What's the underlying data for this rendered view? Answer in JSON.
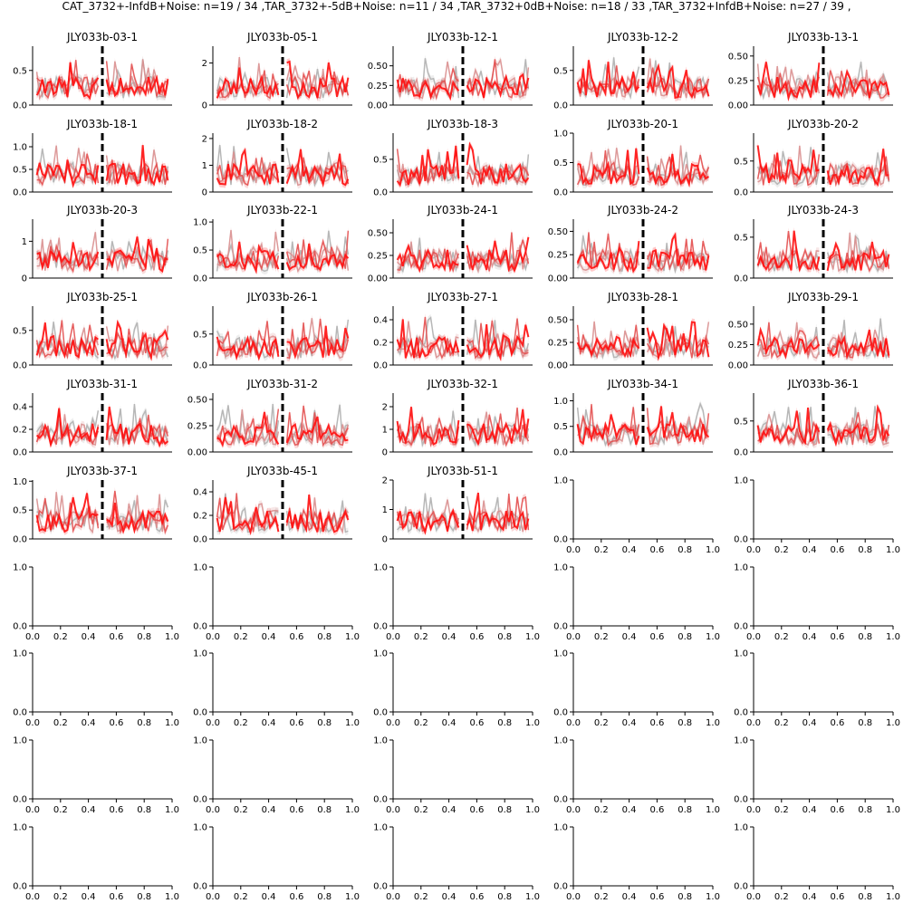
{
  "suptitle": "CAT_3732+-InfdB+Noise: n=19 / 34 ,TAR_3732+-5dB+Noise: n=11 / 34 ,TAR_3732+0dB+Noise: n=18 / 33 ,TAR_3732+InfdB+Noise: n=27 / 39 ,",
  "chart_data": {
    "type": "line",
    "layout": {
      "rows": 10,
      "cols": 5
    },
    "legend": "none",
    "grid": false,
    "series_names": [
      "CAT_3732+-InfdB+Noise",
      "TAR_3732+-5dB+Noise",
      "TAR_3732+0dB+Noise",
      "TAR_3732+InfdB+Noise"
    ],
    "series_colors": [
      "#b0b0b0",
      "#d99090",
      "#e35050",
      "#ff1010"
    ],
    "divider_x": 0.5,
    "panels": [
      {
        "title": "JLY033b-03-1",
        "ylim": [
          0,
          0.85
        ],
        "yticks": [
          "0.0",
          "0.5"
        ],
        "ytick_values": [
          0,
          0.5
        ]
      },
      {
        "title": "JLY033b-05-1",
        "ylim": [
          0,
          2.8
        ],
        "yticks": [
          "0",
          "2"
        ],
        "ytick_values": [
          0,
          2
        ]
      },
      {
        "title": "JLY033b-12-1",
        "ylim": [
          0,
          0.75
        ],
        "yticks": [
          "0.00",
          "0.25",
          "0.50"
        ],
        "ytick_values": [
          0,
          0.25,
          0.5
        ]
      },
      {
        "title": "JLY033b-12-2",
        "ylim": [
          0,
          0.85
        ],
        "yticks": [
          "0.0",
          "0.5"
        ],
        "ytick_values": [
          0,
          0.5
        ]
      },
      {
        "title": "JLY033b-13-1",
        "ylim": [
          0,
          0.6
        ],
        "yticks": [
          "0.00",
          "0.25",
          "0.50"
        ],
        "ytick_values": [
          0,
          0.25,
          0.5
        ]
      },
      {
        "title": "JLY033b-18-1",
        "ylim": [
          0,
          1.3
        ],
        "yticks": [
          "0.0",
          "0.5",
          "1.0"
        ],
        "ytick_values": [
          0,
          0.5,
          1.0
        ]
      },
      {
        "title": "JLY033b-18-2",
        "ylim": [
          0,
          2.2
        ],
        "yticks": [
          "0",
          "1",
          "2"
        ],
        "ytick_values": [
          0,
          1,
          2
        ]
      },
      {
        "title": "JLY033b-18-3",
        "ylim": [
          0,
          0.9
        ],
        "yticks": [
          "0.0",
          "0.5"
        ],
        "ytick_values": [
          0,
          0.5
        ]
      },
      {
        "title": "JLY033b-20-1",
        "ylim": [
          0,
          1.0
        ],
        "yticks": [
          "0.0",
          "0.5",
          "1.0"
        ],
        "ytick_values": [
          0,
          0.5,
          1.0
        ]
      },
      {
        "title": "JLY033b-20-2",
        "ylim": [
          0,
          0.95
        ],
        "yticks": [
          "0.0",
          "0.5"
        ],
        "ytick_values": [
          0,
          0.5
        ]
      },
      {
        "title": "JLY033b-20-3",
        "ylim": [
          0,
          1.6
        ],
        "yticks": [
          "0",
          "1"
        ],
        "ytick_values": [
          0,
          1
        ]
      },
      {
        "title": "JLY033b-22-1",
        "ylim": [
          0,
          1.05
        ],
        "yticks": [
          "0.0",
          "0.5",
          "1.0"
        ],
        "ytick_values": [
          0,
          0.5,
          1.0
        ]
      },
      {
        "title": "JLY033b-24-1",
        "ylim": [
          0,
          0.65
        ],
        "yticks": [
          "0.00",
          "0.25",
          "0.50"
        ],
        "ytick_values": [
          0,
          0.25,
          0.5
        ]
      },
      {
        "title": "JLY033b-24-2",
        "ylim": [
          0,
          0.63
        ],
        "yticks": [
          "0.00",
          "0.25",
          "0.50"
        ],
        "ytick_values": [
          0,
          0.25,
          0.5
        ]
      },
      {
        "title": "JLY033b-24-3",
        "ylim": [
          0,
          0.72
        ],
        "yticks": [
          "0.0",
          "0.5"
        ],
        "ytick_values": [
          0,
          0.5
        ]
      },
      {
        "title": "JLY033b-25-1",
        "ylim": [
          0,
          0.85
        ],
        "yticks": [
          "0.0",
          "0.5"
        ],
        "ytick_values": [
          0,
          0.5
        ]
      },
      {
        "title": "JLY033b-26-1",
        "ylim": [
          0,
          0.95
        ],
        "yticks": [
          "0.0",
          "0.5"
        ],
        "ytick_values": [
          0,
          0.5
        ]
      },
      {
        "title": "JLY033b-27-1",
        "ylim": [
          0,
          0.52
        ],
        "yticks": [
          "0.0",
          "0.2",
          "0.4"
        ],
        "ytick_values": [
          0,
          0.2,
          0.4
        ]
      },
      {
        "title": "JLY033b-28-1",
        "ylim": [
          0,
          0.65
        ],
        "yticks": [
          "0.00",
          "0.25",
          "0.50"
        ],
        "ytick_values": [
          0,
          0.25,
          0.5
        ]
      },
      {
        "title": "JLY033b-29-1",
        "ylim": [
          0,
          0.72
        ],
        "yticks": [
          "0.00",
          "0.25",
          "0.50"
        ],
        "ytick_values": [
          0,
          0.25,
          0.5
        ]
      },
      {
        "title": "JLY033b-31-1",
        "ylim": [
          0,
          0.52
        ],
        "yticks": [
          "0.0",
          "0.2",
          "0.4"
        ],
        "ytick_values": [
          0,
          0.2,
          0.4
        ]
      },
      {
        "title": "JLY033b-31-2",
        "ylim": [
          0,
          0.56
        ],
        "yticks": [
          "0.00",
          "0.25",
          "0.50"
        ],
        "ytick_values": [
          0,
          0.25,
          0.5
        ]
      },
      {
        "title": "JLY033b-32-1",
        "ylim": [
          0,
          2.6
        ],
        "yticks": [
          "0",
          "1",
          "2"
        ],
        "ytick_values": [
          0,
          1,
          2
        ]
      },
      {
        "title": "JLY033b-34-1",
        "ylim": [
          0,
          1.15
        ],
        "yticks": [
          "0.0",
          "0.5",
          "1.0"
        ],
        "ytick_values": [
          0,
          0.5,
          1.0
        ]
      },
      {
        "title": "JLY033b-36-1",
        "ylim": [
          0,
          0.95
        ],
        "yticks": [
          "0.0",
          "0.5"
        ],
        "ytick_values": [
          0,
          0.5
        ]
      },
      {
        "title": "JLY033b-37-1",
        "ylim": [
          0,
          1.02
        ],
        "yticks": [
          "0.0",
          "0.5",
          "1.0"
        ],
        "ytick_values": [
          0,
          0.5,
          1.0
        ]
      },
      {
        "title": "JLY033b-45-1",
        "ylim": [
          0,
          0.5
        ],
        "yticks": [
          "0.0",
          "0.2",
          "0.4"
        ],
        "ytick_values": [
          0,
          0.2,
          0.4
        ]
      },
      {
        "title": "JLY033b-51-1",
        "ylim": [
          0,
          2.0
        ],
        "yticks": [
          "0",
          "1",
          "2"
        ],
        "ytick_values": [
          0,
          1,
          2
        ]
      }
    ],
    "empty_axes": {
      "count": 22,
      "xticks": [
        "0.0",
        "0.2",
        "0.4",
        "0.6",
        "0.8",
        "1.0"
      ],
      "yticks": [
        "0.0",
        "1.0"
      ]
    }
  }
}
